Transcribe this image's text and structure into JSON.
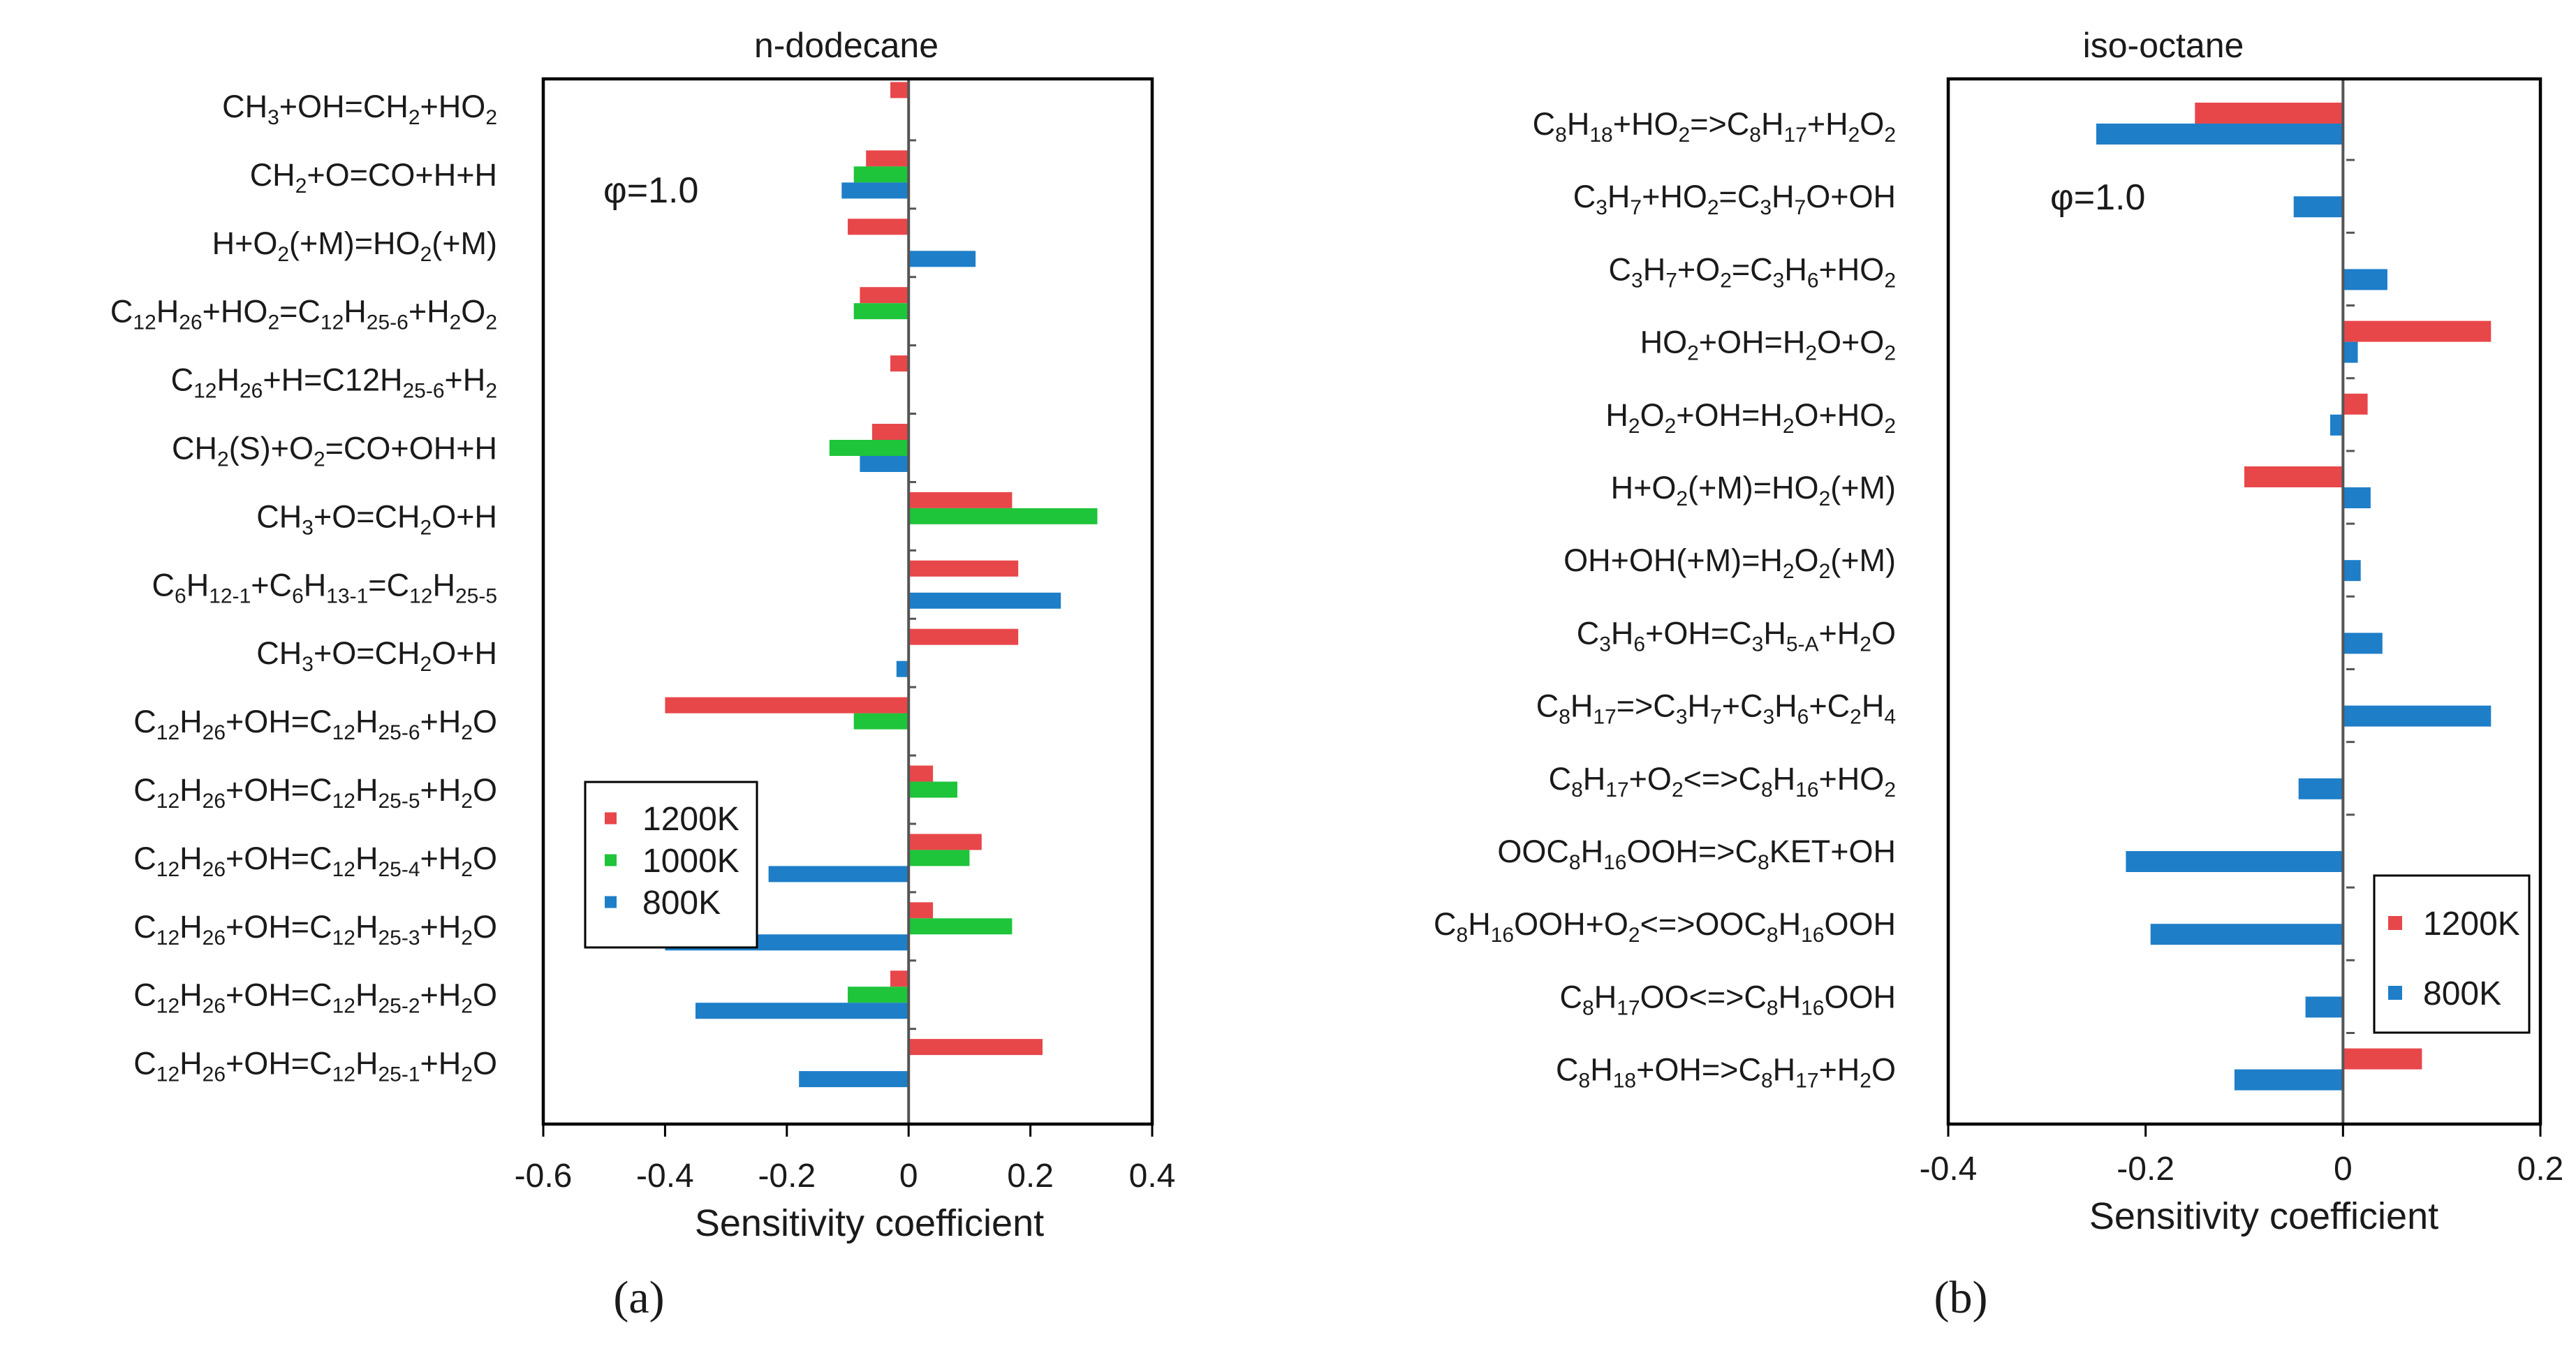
{
  "colors": {
    "s1200": "#e8474a",
    "s1000": "#1ec43a",
    "s800": "#1e7ec8"
  },
  "chart_data": [
    {
      "type": "bar",
      "orientation": "horizontal",
      "title": "n-dodecane",
      "panel_label": "(a)",
      "annotation": "φ=1.0",
      "xlabel": "Sensitivity coefficient",
      "ylabel": "",
      "xlim": [
        -0.6,
        0.4
      ],
      "xticks": [
        -0.6,
        -0.4,
        -0.2,
        0,
        0.2,
        0.4
      ],
      "xtick_labels": [
        "-0.6",
        "-0.4",
        "-0.2",
        "0",
        "0.2",
        "0.4"
      ],
      "legend_position": "lower-left",
      "categories": [
        [
          "CH",
          {
            "t": "3",
            "s": "sub"
          },
          "+OH=CH",
          {
            "t": "2",
            "s": "sub"
          },
          "+HO",
          {
            "t": "2",
            "s": "sub"
          }
        ],
        [
          "CH",
          {
            "t": "2",
            "s": "sub"
          },
          "+O=CO+H+H"
        ],
        [
          "H+O",
          {
            "t": "2",
            "s": "sub"
          },
          "(+M)=HO",
          {
            "t": "2",
            "s": "sub"
          },
          "(+M)"
        ],
        [
          "C",
          {
            "t": "12",
            "s": "sub"
          },
          "H",
          {
            "t": "26",
            "s": "sub"
          },
          "+HO",
          {
            "t": "2",
            "s": "sub"
          },
          "=C",
          {
            "t": "12",
            "s": "sub"
          },
          "H",
          {
            "t": "25-6",
            "s": "sub"
          },
          "+H",
          {
            "t": "2",
            "s": "sub"
          },
          "O",
          {
            "t": "2",
            "s": "sub"
          }
        ],
        [
          "C",
          {
            "t": "12",
            "s": "sub"
          },
          "H",
          {
            "t": "26",
            "s": "sub"
          },
          "+H=C12H",
          {
            "t": "25-6",
            "s": "sub"
          },
          "+H",
          {
            "t": "2",
            "s": "sub"
          }
        ],
        [
          "CH",
          {
            "t": "2",
            "s": "sub"
          },
          "(S)+O",
          {
            "t": "2",
            "s": "sub"
          },
          "=CO+OH+H"
        ],
        [
          "CH",
          {
            "t": "3",
            "s": "sub"
          },
          "+O=CH",
          {
            "t": "2",
            "s": "sub"
          },
          "O+H"
        ],
        [
          "C",
          {
            "t": "6",
            "s": "sub"
          },
          "H",
          {
            "t": "12-1",
            "s": "sub"
          },
          "+C",
          {
            "t": "6",
            "s": "sub"
          },
          "H",
          {
            "t": "13-1",
            "s": "sub"
          },
          "=C",
          {
            "t": "12",
            "s": "sub"
          },
          "H",
          {
            "t": "25-5",
            "s": "sub"
          }
        ],
        [
          "CH",
          {
            "t": "3",
            "s": "sub"
          },
          "+O=CH",
          {
            "t": "2",
            "s": "sub"
          },
          "O+H"
        ],
        [
          "C",
          {
            "t": "12",
            "s": "sub"
          },
          "H",
          {
            "t": "26",
            "s": "sub"
          },
          "+OH=C",
          {
            "t": "12",
            "s": "sub"
          },
          "H",
          {
            "t": "25-6",
            "s": "sub"
          },
          "+H",
          {
            "t": "2",
            "s": "sub"
          },
          "O"
        ],
        [
          "C",
          {
            "t": "12",
            "s": "sub"
          },
          "H",
          {
            "t": "26",
            "s": "sub"
          },
          "+OH=C",
          {
            "t": "12",
            "s": "sub"
          },
          "H",
          {
            "t": "25-5",
            "s": "sub"
          },
          "+H",
          {
            "t": "2",
            "s": "sub"
          },
          "O"
        ],
        [
          "C",
          {
            "t": "12",
            "s": "sub"
          },
          "H",
          {
            "t": "26",
            "s": "sub"
          },
          "+OH=C",
          {
            "t": "12",
            "s": "sub"
          },
          "H",
          {
            "t": "25-4",
            "s": "sub"
          },
          "+H",
          {
            "t": "2",
            "s": "sub"
          },
          "O"
        ],
        [
          "C",
          {
            "t": "12",
            "s": "sub"
          },
          "H",
          {
            "t": "26",
            "s": "sub"
          },
          "+OH=C",
          {
            "t": "12",
            "s": "sub"
          },
          "H",
          {
            "t": "25-3",
            "s": "sub"
          },
          "+H",
          {
            "t": "2",
            "s": "sub"
          },
          "O"
        ],
        [
          "C",
          {
            "t": "12",
            "s": "sub"
          },
          "H",
          {
            "t": "26",
            "s": "sub"
          },
          "+OH=C",
          {
            "t": "12",
            "s": "sub"
          },
          "H",
          {
            "t": "25-2",
            "s": "sub"
          },
          "+H",
          {
            "t": "2",
            "s": "sub"
          },
          "O"
        ],
        [
          "C",
          {
            "t": "12",
            "s": "sub"
          },
          "H",
          {
            "t": "26",
            "s": "sub"
          },
          "+OH=C",
          {
            "t": "12",
            "s": "sub"
          },
          "H",
          {
            "t": "25-1",
            "s": "sub"
          },
          "+H",
          {
            "t": "2",
            "s": "sub"
          },
          "O"
        ]
      ],
      "series": [
        {
          "name": "1200K",
          "color_key": "s1200",
          "values": [
            -0.03,
            -0.07,
            -0.1,
            -0.08,
            -0.03,
            -0.06,
            0.17,
            0.18,
            0.18,
            -0.4,
            0.04,
            0.12,
            0.04,
            -0.03,
            0.22
          ]
        },
        {
          "name": "1000K",
          "color_key": "s1000",
          "values": [
            0,
            -0.09,
            0,
            -0.09,
            0,
            -0.13,
            0.31,
            0,
            0,
            -0.09,
            0.08,
            0.1,
            0.17,
            -0.1,
            0
          ]
        },
        {
          "name": "800K",
          "color_key": "s800",
          "values": [
            0,
            -0.11,
            0.11,
            0,
            0,
            -0.08,
            0,
            0.25,
            -0.02,
            0,
            0,
            -0.23,
            -0.4,
            -0.35,
            -0.18
          ]
        }
      ]
    },
    {
      "type": "bar",
      "orientation": "horizontal",
      "title": "iso-octane",
      "panel_label": "(b)",
      "annotation": "φ=1.0",
      "xlabel": "Sensitivity coefficient",
      "ylabel": "",
      "xlim": [
        -0.4,
        0.2
      ],
      "xticks": [
        -0.4,
        -0.2,
        0,
        0.2
      ],
      "xtick_labels": [
        "-0.4",
        "-0.2",
        "0",
        "0.2"
      ],
      "legend_position": "lower-right",
      "categories": [
        [
          "C",
          {
            "t": "8",
            "s": "sub"
          },
          "H",
          {
            "t": "18",
            "s": "sub"
          },
          "+HO",
          {
            "t": "2",
            "s": "sub"
          },
          "=>C",
          {
            "t": "8",
            "s": "sub"
          },
          "H",
          {
            "t": "17",
            "s": "sub"
          },
          "+H",
          {
            "t": "2",
            "s": "sub"
          },
          "O",
          {
            "t": "2",
            "s": "sub"
          }
        ],
        [
          "C",
          {
            "t": "3",
            "s": "sub"
          },
          "H",
          {
            "t": "7",
            "s": "sub"
          },
          "+HO",
          {
            "t": "2",
            "s": "sub"
          },
          "=C",
          {
            "t": "3",
            "s": "sub"
          },
          "H",
          {
            "t": "7",
            "s": "sub"
          },
          "O+OH"
        ],
        [
          "C",
          {
            "t": "3",
            "s": "sub"
          },
          "H",
          {
            "t": "7",
            "s": "sub"
          },
          "+O",
          {
            "t": "2",
            "s": "sub"
          },
          "=C",
          {
            "t": "3",
            "s": "sub"
          },
          "H",
          {
            "t": "6",
            "s": "sub"
          },
          "+HO",
          {
            "t": "2",
            "s": "sub"
          }
        ],
        [
          "HO",
          {
            "t": "2",
            "s": "sub"
          },
          "+OH=H",
          {
            "t": "2",
            "s": "sub"
          },
          "O+O",
          {
            "t": "2",
            "s": "sub"
          }
        ],
        [
          "H",
          {
            "t": "2",
            "s": "sub"
          },
          "O",
          {
            "t": "2",
            "s": "sub"
          },
          "+OH=H",
          {
            "t": "2",
            "s": "sub"
          },
          "O+HO",
          {
            "t": "2",
            "s": "sub"
          }
        ],
        [
          "H+O",
          {
            "t": "2",
            "s": "sub"
          },
          "(+M)=HO",
          {
            "t": "2",
            "s": "sub"
          },
          "(+M)"
        ],
        [
          "OH+OH(+M)=H",
          {
            "t": "2",
            "s": "sub"
          },
          "O",
          {
            "t": "2",
            "s": "sub"
          },
          "(+M)"
        ],
        [
          "C",
          {
            "t": "3",
            "s": "sub"
          },
          "H",
          {
            "t": "6",
            "s": "sub"
          },
          "+OH=C",
          {
            "t": "3",
            "s": "sub"
          },
          "H",
          {
            "t": "5-A",
            "s": "sub"
          },
          "+H",
          {
            "t": "2",
            "s": "sub"
          },
          "O"
        ],
        [
          "C",
          {
            "t": "8",
            "s": "sub"
          },
          "H",
          {
            "t": "17",
            "s": "sub"
          },
          "=>C",
          {
            "t": "3",
            "s": "sub"
          },
          "H",
          {
            "t": "7",
            "s": "sub"
          },
          "+C",
          {
            "t": "3",
            "s": "sub"
          },
          "H",
          {
            "t": "6",
            "s": "sub"
          },
          "+C",
          {
            "t": "2",
            "s": "sub"
          },
          "H",
          {
            "t": "4",
            "s": "sub"
          }
        ],
        [
          "C",
          {
            "t": "8",
            "s": "sub"
          },
          "H",
          {
            "t": "17",
            "s": "sub"
          },
          "+O",
          {
            "t": "2",
            "s": "sub"
          },
          "<=>C",
          {
            "t": "8",
            "s": "sub"
          },
          "H",
          {
            "t": "16",
            "s": "sub"
          },
          "+HO",
          {
            "t": "2",
            "s": "sub"
          }
        ],
        [
          "OOC",
          {
            "t": "8",
            "s": "sub"
          },
          "H",
          {
            "t": "16",
            "s": "sub"
          },
          "OOH=>C",
          {
            "t": "8",
            "s": "sub"
          },
          "KET+OH"
        ],
        [
          "C",
          {
            "t": "8",
            "s": "sub"
          },
          "H",
          {
            "t": "16",
            "s": "sub"
          },
          "OOH+O",
          {
            "t": "2",
            "s": "sub"
          },
          "<=>OOC",
          {
            "t": "8",
            "s": "sub"
          },
          "H",
          {
            "t": "16",
            "s": "sub"
          },
          "OOH"
        ],
        [
          "C",
          {
            "t": "8",
            "s": "sub"
          },
          "H",
          {
            "t": "17",
            "s": "sub"
          },
          "OO<=>C",
          {
            "t": "8",
            "s": "sub"
          },
          "H",
          {
            "t": "16",
            "s": "sub"
          },
          "OOH"
        ],
        [
          "C",
          {
            "t": "8",
            "s": "sub"
          },
          "H",
          {
            "t": "18",
            "s": "sub"
          },
          "+OH=>C",
          {
            "t": "8",
            "s": "sub"
          },
          "H",
          {
            "t": "17",
            "s": "sub"
          },
          "+H",
          {
            "t": "2",
            "s": "sub"
          },
          "O"
        ]
      ],
      "series": [
        {
          "name": "1200K",
          "color_key": "s1200",
          "values": [
            -0.15,
            0,
            0,
            0.15,
            0.025,
            -0.1,
            0,
            0,
            0,
            0,
            0,
            0,
            0,
            0.08
          ]
        },
        {
          "name": "800K",
          "color_key": "s800",
          "values": [
            -0.25,
            -0.05,
            0.045,
            0.015,
            -0.013,
            0.028,
            0.018,
            0.04,
            0.15,
            -0.045,
            -0.22,
            -0.195,
            -0.038,
            -0.11
          ]
        }
      ]
    }
  ]
}
